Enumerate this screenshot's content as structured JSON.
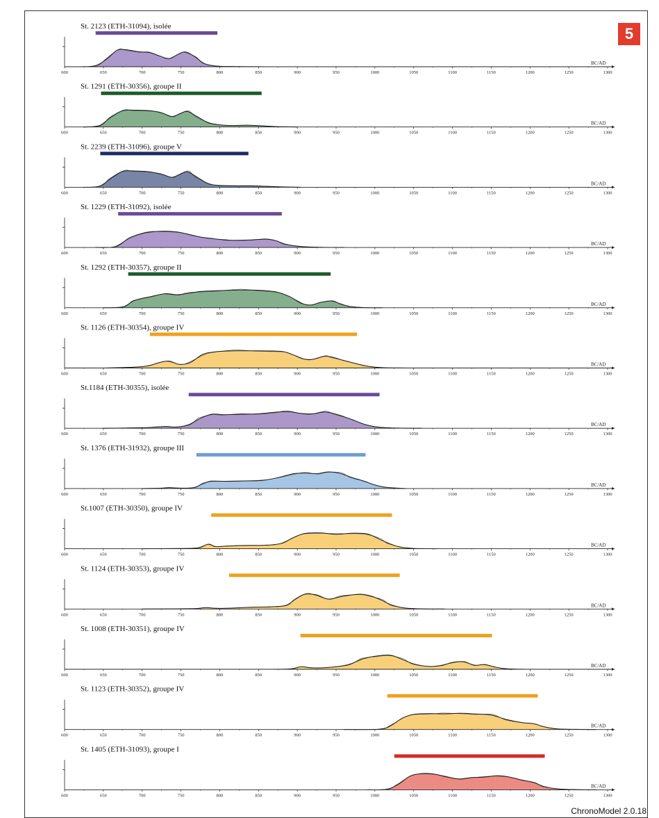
{
  "figure": {
    "badge": "5",
    "software": "ChronoModel 2.0.18"
  },
  "chart_data": {
    "type": "area",
    "x_unit_label": "BC/AD",
    "xlim": [
      600,
      1300
    ],
    "x_ticks": [
      600,
      650,
      700,
      750,
      800,
      850,
      900,
      950,
      1000,
      1050,
      1100,
      1150,
      1200,
      1250,
      1300
    ],
    "colors": {
      "purple": "#a993c8",
      "green": "#7ba583",
      "navy": "#7884a6",
      "orange": "#f7cf7b",
      "blue": "#a7c6e5",
      "red": "#ec8b84"
    },
    "panels": [
      {
        "title": "St. 2123 (ETH-31094), isolée",
        "fill": "#ab99cb",
        "hpd_color": "#6a4c99",
        "hpd": [
          640,
          797
        ],
        "curve": [
          [
            620,
            0
          ],
          [
            640,
            0.06
          ],
          [
            655,
            0.45
          ],
          [
            668,
            0.92
          ],
          [
            680,
            0.94
          ],
          [
            695,
            0.83
          ],
          [
            710,
            0.78
          ],
          [
            722,
            0.6
          ],
          [
            735,
            0.45
          ],
          [
            746,
            0.68
          ],
          [
            756,
            0.82
          ],
          [
            768,
            0.55
          ],
          [
            780,
            0.18
          ],
          [
            795,
            0.04
          ],
          [
            820,
            0.01
          ],
          [
            880,
            0.0
          ]
        ]
      },
      {
        "title": "St. 1291 (ETH-30356), groupe II",
        "fill": "#85ae8c",
        "hpd_color": "#1f5a2b",
        "hpd": [
          647,
          854
        ],
        "curve": [
          [
            625,
            0
          ],
          [
            645,
            0.08
          ],
          [
            660,
            0.55
          ],
          [
            675,
            0.9
          ],
          [
            690,
            0.93
          ],
          [
            710,
            0.9
          ],
          [
            725,
            0.78
          ],
          [
            738,
            0.58
          ],
          [
            748,
            0.72
          ],
          [
            758,
            0.86
          ],
          [
            770,
            0.6
          ],
          [
            785,
            0.24
          ],
          [
            800,
            0.12
          ],
          [
            815,
            0.08
          ],
          [
            835,
            0.1
          ],
          [
            855,
            0.06
          ],
          [
            875,
            0.02
          ],
          [
            900,
            0.0
          ]
        ]
      },
      {
        "title": "St. 2239 (ETH-31096), groupe V",
        "fill": "#7885a7",
        "hpd_color": "#1f2a65",
        "hpd": [
          646,
          837
        ],
        "curve": [
          [
            625,
            0
          ],
          [
            645,
            0.06
          ],
          [
            660,
            0.5
          ],
          [
            675,
            0.88
          ],
          [
            690,
            0.9
          ],
          [
            708,
            0.86
          ],
          [
            725,
            0.72
          ],
          [
            738,
            0.55
          ],
          [
            748,
            0.7
          ],
          [
            758,
            0.86
          ],
          [
            770,
            0.58
          ],
          [
            785,
            0.2
          ],
          [
            800,
            0.1
          ],
          [
            820,
            0.08
          ],
          [
            840,
            0.08
          ],
          [
            860,
            0.05
          ],
          [
            880,
            0.02
          ],
          [
            905,
            0.0
          ]
        ]
      },
      {
        "title": "St. 1229 (ETH-31092), isolée",
        "fill": "#ac98ca",
        "hpd_color": "#6a4c99",
        "hpd": [
          669,
          880
        ],
        "curve": [
          [
            640,
            0
          ],
          [
            665,
            0.05
          ],
          [
            685,
            0.55
          ],
          [
            705,
            0.82
          ],
          [
            725,
            0.9
          ],
          [
            745,
            0.86
          ],
          [
            760,
            0.72
          ],
          [
            775,
            0.58
          ],
          [
            790,
            0.5
          ],
          [
            805,
            0.42
          ],
          [
            820,
            0.4
          ],
          [
            840,
            0.42
          ],
          [
            860,
            0.46
          ],
          [
            872,
            0.38
          ],
          [
            885,
            0.18
          ],
          [
            905,
            0.05
          ],
          [
            930,
            0.01
          ],
          [
            960,
            0.0
          ]
        ]
      },
      {
        "title": "St. 1292 (ETH-30357), groupe II",
        "fill": "#85ae8c",
        "hpd_color": "#1f5a2b",
        "hpd": [
          682,
          943
        ],
        "curve": [
          [
            650,
            0
          ],
          [
            675,
            0.05
          ],
          [
            690,
            0.4
          ],
          [
            710,
            0.6
          ],
          [
            730,
            0.78
          ],
          [
            745,
            0.72
          ],
          [
            760,
            0.8
          ],
          [
            775,
            0.9
          ],
          [
            800,
            0.95
          ],
          [
            825,
            0.98
          ],
          [
            850,
            0.97
          ],
          [
            872,
            0.88
          ],
          [
            890,
            0.62
          ],
          [
            905,
            0.25
          ],
          [
            918,
            0.15
          ],
          [
            930,
            0.3
          ],
          [
            945,
            0.38
          ],
          [
            955,
            0.22
          ],
          [
            968,
            0.07
          ],
          [
            985,
            0.01
          ],
          [
            1010,
            0.0
          ]
        ]
      },
      {
        "title": "St. 1126 (ETH-30354), groupe IV",
        "fill": "#f8d07a",
        "hpd_color": "#eda21d",
        "hpd": [
          710,
          977
        ],
        "curve": [
          [
            650,
            0
          ],
          [
            690,
            0.05
          ],
          [
            708,
            0.12
          ],
          [
            722,
            0.3
          ],
          [
            735,
            0.38
          ],
          [
            748,
            0.2
          ],
          [
            762,
            0.3
          ],
          [
            778,
            0.75
          ],
          [
            795,
            0.9
          ],
          [
            820,
            0.95
          ],
          [
            850,
            0.95
          ],
          [
            880,
            0.92
          ],
          [
            895,
            0.72
          ],
          [
            908,
            0.5
          ],
          [
            920,
            0.48
          ],
          [
            935,
            0.65
          ],
          [
            945,
            0.6
          ],
          [
            958,
            0.44
          ],
          [
            975,
            0.25
          ],
          [
            990,
            0.1
          ],
          [
            1010,
            0.02
          ],
          [
            1040,
            0.0
          ]
        ]
      },
      {
        "title": "St.1184 (ETH-30355), isolée",
        "fill": "#ab98c9",
        "hpd_color": "#6a4c99",
        "hpd": [
          760,
          1006
        ],
        "curve": [
          [
            650,
            0
          ],
          [
            700,
            0.03
          ],
          [
            718,
            0.07
          ],
          [
            730,
            0.1
          ],
          [
            745,
            0.07
          ],
          [
            760,
            0.2
          ],
          [
            775,
            0.55
          ],
          [
            790,
            0.78
          ],
          [
            805,
            0.75
          ],
          [
            825,
            0.77
          ],
          [
            850,
            0.8
          ],
          [
            870,
            0.88
          ],
          [
            888,
            0.92
          ],
          [
            905,
            0.82
          ],
          [
            920,
            0.8
          ],
          [
            935,
            0.9
          ],
          [
            950,
            0.78
          ],
          [
            968,
            0.52
          ],
          [
            988,
            0.2
          ],
          [
            1005,
            0.06
          ],
          [
            1030,
            0.01
          ],
          [
            1060,
            0.0
          ]
        ]
      },
      {
        "title": "St. 1376 (ETH-31932), groupe III",
        "fill": "#a6c5e4",
        "hpd_color": "#6b9ed3",
        "hpd": [
          770,
          988
        ],
        "curve": [
          [
            700,
            0
          ],
          [
            725,
            0.02
          ],
          [
            735,
            0.05
          ],
          [
            750,
            0.02
          ],
          [
            768,
            0.06
          ],
          [
            778,
            0.28
          ],
          [
            790,
            0.4
          ],
          [
            808,
            0.4
          ],
          [
            830,
            0.42
          ],
          [
            855,
            0.45
          ],
          [
            875,
            0.6
          ],
          [
            895,
            0.82
          ],
          [
            912,
            0.85
          ],
          [
            925,
            0.82
          ],
          [
            940,
            0.92
          ],
          [
            955,
            0.84
          ],
          [
            970,
            0.62
          ],
          [
            985,
            0.42
          ],
          [
            1000,
            0.2
          ],
          [
            1015,
            0.06
          ],
          [
            1040,
            0.0
          ]
        ]
      },
      {
        "title": "St.1007 (ETH-30350), groupe IV",
        "fill": "#f8d07a",
        "hpd_color": "#eda21d",
        "hpd": [
          789,
          1022
        ],
        "curve": [
          [
            700,
            0
          ],
          [
            760,
            0.02
          ],
          [
            775,
            0.08
          ],
          [
            785,
            0.25
          ],
          [
            795,
            0.12
          ],
          [
            808,
            0.15
          ],
          [
            830,
            0.18
          ],
          [
            860,
            0.2
          ],
          [
            880,
            0.3
          ],
          [
            895,
            0.62
          ],
          [
            910,
            0.85
          ],
          [
            930,
            0.88
          ],
          [
            950,
            0.8
          ],
          [
            970,
            0.86
          ],
          [
            990,
            0.82
          ],
          [
            1005,
            0.55
          ],
          [
            1018,
            0.3
          ],
          [
            1032,
            0.1
          ],
          [
            1050,
            0.02
          ],
          [
            1080,
            0.0
          ]
        ]
      },
      {
        "title": "St. 1124 (ETH-30353), groupe IV",
        "fill": "#f8d07a",
        "hpd_color": "#eda21d",
        "hpd": [
          812,
          1032
        ],
        "curve": [
          [
            700,
            0
          ],
          [
            765,
            0.02
          ],
          [
            782,
            0.08
          ],
          [
            795,
            0.04
          ],
          [
            815,
            0.05
          ],
          [
            840,
            0.1
          ],
          [
            865,
            0.12
          ],
          [
            885,
            0.2
          ],
          [
            898,
            0.55
          ],
          [
            910,
            0.82
          ],
          [
            925,
            0.78
          ],
          [
            940,
            0.55
          ],
          [
            958,
            0.7
          ],
          [
            980,
            0.82
          ],
          [
            995,
            0.72
          ],
          [
            1008,
            0.5
          ],
          [
            1022,
            0.22
          ],
          [
            1038,
            0.06
          ],
          [
            1060,
            0.01
          ],
          [
            1090,
            0.0
          ]
        ]
      },
      {
        "title": "St. 1008 (ETH-30351), groupe IV",
        "fill": "#f8d07a",
        "hpd_color": "#eda21d",
        "hpd": [
          904,
          1151
        ],
        "curve": [
          [
            850,
            0
          ],
          [
            890,
            0.02
          ],
          [
            905,
            0.14
          ],
          [
            918,
            0.08
          ],
          [
            940,
            0.1
          ],
          [
            965,
            0.25
          ],
          [
            985,
            0.58
          ],
          [
            1000,
            0.72
          ],
          [
            1020,
            0.78
          ],
          [
            1035,
            0.55
          ],
          [
            1050,
            0.3
          ],
          [
            1068,
            0.16
          ],
          [
            1085,
            0.2
          ],
          [
            1100,
            0.38
          ],
          [
            1115,
            0.42
          ],
          [
            1128,
            0.22
          ],
          [
            1142,
            0.26
          ],
          [
            1155,
            0.12
          ],
          [
            1170,
            0.03
          ],
          [
            1195,
            0.0
          ]
        ]
      },
      {
        "title": "St. 1123 (ETH-30352), groupe IV",
        "fill": "#f8d07a",
        "hpd_color": "#eda21d",
        "hpd": [
          1016,
          1210
        ],
        "curve": [
          [
            960,
            0
          ],
          [
            1005,
            0.02
          ],
          [
            1020,
            0.2
          ],
          [
            1035,
            0.62
          ],
          [
            1050,
            0.84
          ],
          [
            1070,
            0.88
          ],
          [
            1090,
            0.87
          ],
          [
            1110,
            0.9
          ],
          [
            1130,
            0.86
          ],
          [
            1150,
            0.8
          ],
          [
            1170,
            0.55
          ],
          [
            1190,
            0.38
          ],
          [
            1205,
            0.32
          ],
          [
            1218,
            0.15
          ],
          [
            1235,
            0.04
          ],
          [
            1260,
            0.01
          ],
          [
            1285,
            0.0
          ]
        ]
      },
      {
        "title": "St. 1405 (ETH-31093), groupe I",
        "fill": "#ec8a84",
        "hpd_color": "#d72a28",
        "hpd": [
          1025,
          1219
        ],
        "curve": [
          [
            990,
            0
          ],
          [
            1015,
            0.03
          ],
          [
            1030,
            0.3
          ],
          [
            1045,
            0.75
          ],
          [
            1060,
            0.9
          ],
          [
            1075,
            0.88
          ],
          [
            1092,
            0.72
          ],
          [
            1108,
            0.6
          ],
          [
            1125,
            0.68
          ],
          [
            1140,
            0.7
          ],
          [
            1158,
            0.78
          ],
          [
            1172,
            0.72
          ],
          [
            1188,
            0.55
          ],
          [
            1205,
            0.4
          ],
          [
            1218,
            0.18
          ],
          [
            1235,
            0.05
          ],
          [
            1260,
            0.01
          ],
          [
            1285,
            0.0
          ]
        ]
      }
    ]
  }
}
